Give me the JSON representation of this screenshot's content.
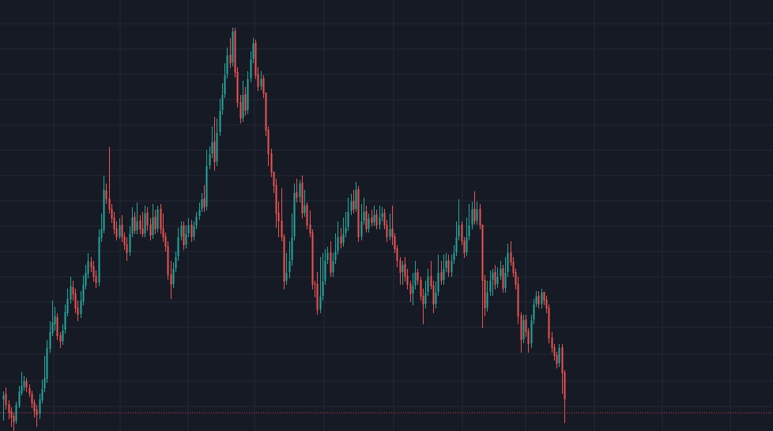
{
  "chart_data": {
    "type": "candlestick",
    "title": "",
    "xlabel": "",
    "ylabel": "",
    "grid": true,
    "ylim": [
      0,
      545
    ],
    "price_line": 522,
    "colors": {
      "background": "#161a25",
      "grid": "#242836",
      "up": "#26a69a",
      "down": "#ef5350",
      "price_line": "#ef5350"
    },
    "candles": [
      [
        505,
        500,
        532,
        495
      ],
      [
        498,
        512,
        518,
        490
      ],
      [
        511,
        522,
        530,
        506
      ],
      [
        520,
        528,
        540,
        515
      ],
      [
        526,
        534,
        545,
        522
      ],
      [
        532,
        512,
        536,
        508
      ],
      [
        513,
        495,
        516,
        488
      ],
      [
        497,
        488,
        500,
        470
      ],
      [
        489,
        482,
        494,
        475
      ],
      [
        482,
        490,
        496,
        478
      ],
      [
        491,
        498,
        502,
        486
      ],
      [
        498,
        510,
        516,
        494
      ],
      [
        509,
        520,
        528,
        505
      ],
      [
        518,
        525,
        540,
        512
      ],
      [
        523,
        505,
        530,
        498
      ],
      [
        506,
        492,
        510,
        480
      ],
      [
        491,
        478,
        496,
        450
      ],
      [
        479,
        440,
        484,
        430
      ],
      [
        441,
        420,
        446,
        406
      ],
      [
        421,
        408,
        425,
        380
      ],
      [
        410,
        400,
        418,
        388
      ],
      [
        401,
        425,
        430,
        396
      ],
      [
        424,
        432,
        440,
        420
      ],
      [
        431,
        418,
        436,
        410
      ],
      [
        417,
        395,
        422,
        385
      ],
      [
        396,
        378,
        400,
        365
      ],
      [
        379,
        362,
        384,
        350
      ],
      [
        363,
        372,
        380,
        355
      ],
      [
        371,
        390,
        396,
        365
      ],
      [
        389,
        398,
        406,
        380
      ],
      [
        397,
        380,
        402,
        368
      ],
      [
        381,
        360,
        386,
        348
      ],
      [
        361,
        345,
        366,
        335
      ],
      [
        346,
        330,
        352,
        320
      ],
      [
        331,
        338,
        344,
        325
      ],
      [
        337,
        350,
        356,
        330
      ],
      [
        349,
        358,
        364,
        342
      ],
      [
        357,
        300,
        362,
        290
      ],
      [
        301,
        290,
        306,
        270
      ],
      [
        291,
        240,
        295,
        222
      ],
      [
        241,
        252,
        258,
        232
      ],
      [
        251,
        265,
        270,
        186
      ],
      [
        264,
        276,
        282,
        258
      ],
      [
        275,
        290,
        296,
        268
      ],
      [
        289,
        300,
        304,
        280
      ],
      [
        299,
        285,
        302,
        276
      ],
      [
        284,
        300,
        306,
        272
      ],
      [
        299,
        310,
        316,
        294
      ],
      [
        309,
        320,
        330,
        300
      ],
      [
        319,
        296,
        324,
        286
      ],
      [
        295,
        275,
        300,
        262
      ],
      [
        274,
        292,
        296,
        268
      ],
      [
        291,
        280,
        296,
        256
      ],
      [
        279,
        290,
        296,
        272
      ],
      [
        289,
        296,
        300,
        268
      ],
      [
        295,
        270,
        300,
        260
      ],
      [
        269,
        285,
        292,
        262
      ],
      [
        284,
        298,
        304,
        276
      ],
      [
        297,
        275,
        302,
        258
      ],
      [
        274,
        290,
        296,
        265
      ],
      [
        289,
        265,
        294,
        260
      ],
      [
        264,
        290,
        296,
        258
      ],
      [
        289,
        300,
        306,
        270
      ],
      [
        299,
        312,
        318,
        294
      ],
      [
        311,
        348,
        354,
        305
      ],
      [
        347,
        360,
        378,
        330
      ],
      [
        359,
        340,
        364,
        332
      ],
      [
        339,
        325,
        344,
        318
      ],
      [
        324,
        300,
        330,
        288
      ],
      [
        299,
        286,
        304,
        280
      ],
      [
        285,
        310,
        316,
        280
      ],
      [
        309,
        296,
        314,
        285
      ],
      [
        295,
        285,
        300,
        276
      ],
      [
        284,
        300,
        306,
        278
      ],
      [
        299,
        286,
        304,
        280
      ],
      [
        285,
        274,
        290,
        268
      ],
      [
        273,
        265,
        278,
        256
      ],
      [
        264,
        252,
        268,
        244
      ],
      [
        251,
        262,
        268,
        234
      ],
      [
        261,
        210,
        266,
        190
      ],
      [
        209,
        195,
        214,
        185
      ],
      [
        194,
        180,
        200,
        160
      ],
      [
        179,
        205,
        216,
        148
      ],
      [
        204,
        168,
        210,
        150
      ],
      [
        167,
        140,
        172,
        125
      ],
      [
        139,
        120,
        145,
        105
      ],
      [
        119,
        95,
        124,
        80
      ],
      [
        94,
        70,
        99,
        60
      ],
      [
        69,
        80,
        86,
        48
      ],
      [
        79,
        40,
        84,
        35
      ],
      [
        39,
        92,
        98,
        35
      ],
      [
        91,
        130,
        136,
        85
      ],
      [
        129,
        150,
        156,
        120
      ],
      [
        149,
        120,
        154,
        102
      ],
      [
        119,
        140,
        146,
        110
      ],
      [
        139,
        100,
        144,
        90
      ],
      [
        99,
        75,
        104,
        65
      ],
      [
        74,
        55,
        80,
        48
      ],
      [
        54,
        95,
        100,
        50
      ],
      [
        94,
        110,
        115,
        85
      ],
      [
        109,
        100,
        114,
        90
      ],
      [
        99,
        118,
        124,
        95
      ],
      [
        117,
        165,
        172,
        152
      ],
      [
        164,
        195,
        210,
        160
      ],
      [
        194,
        218,
        224,
        188
      ],
      [
        217,
        235,
        244,
        228
      ],
      [
        234,
        270,
        288,
        226
      ],
      [
        269,
        280,
        300,
        255
      ],
      [
        279,
        300,
        305,
        238
      ],
      [
        299,
        356,
        366,
        296
      ],
      [
        355,
        345,
        360,
        320
      ],
      [
        344,
        330,
        352,
        305
      ],
      [
        329,
        300,
        336,
        270
      ],
      [
        299,
        244,
        304,
        232
      ],
      [
        243,
        250,
        256,
        226
      ],
      [
        249,
        232,
        256,
        228
      ],
      [
        231,
        270,
        276,
        222
      ],
      [
        269,
        260,
        274,
        240
      ],
      [
        259,
        285,
        290,
        256
      ],
      [
        284,
        295,
        300,
        266
      ],
      [
        294,
        360,
        366,
        290
      ],
      [
        359,
        360,
        376,
        355
      ],
      [
        359,
        392,
        398,
        344
      ],
      [
        391,
        375,
        396,
        325
      ],
      [
        374,
        356,
        380,
        320
      ],
      [
        355,
        330,
        360,
        315
      ],
      [
        329,
        320,
        334,
        312
      ],
      [
        319,
        345,
        350,
        305
      ],
      [
        344,
        330,
        350,
        320
      ],
      [
        329,
        318,
        334,
        295
      ],
      [
        317,
        300,
        322,
        280
      ],
      [
        299,
        308,
        314,
        288
      ],
      [
        307,
        296,
        312,
        275
      ],
      [
        295,
        288,
        300,
        268
      ],
      [
        287,
        268,
        292,
        250
      ],
      [
        267,
        255,
        272,
        245
      ],
      [
        254,
        265,
        270,
        240
      ],
      [
        264,
        240,
        268,
        230
      ],
      [
        239,
        300,
        306,
        235
      ],
      [
        299,
        280,
        304,
        258
      ],
      [
        279,
        268,
        284,
        250
      ],
      [
        267,
        290,
        294,
        260
      ],
      [
        289,
        276,
        294,
        270
      ],
      [
        275,
        282,
        286,
        265
      ],
      [
        281,
        272,
        286,
        260
      ],
      [
        271,
        285,
        290,
        265
      ],
      [
        284,
        275,
        290,
        260
      ],
      [
        274,
        270,
        280,
        262
      ],
      [
        269,
        285,
        290,
        264
      ],
      [
        284,
        300,
        306,
        278
      ],
      [
        299,
        290,
        304,
        270
      ],
      [
        289,
        300,
        310,
        260
      ],
      [
        299,
        315,
        320,
        295
      ],
      [
        314,
        330,
        338,
        310
      ],
      [
        329,
        345,
        360,
        325
      ],
      [
        344,
        335,
        360,
        330
      ],
      [
        334,
        350,
        356,
        325
      ],
      [
        349,
        360,
        366,
        340
      ],
      [
        359,
        372,
        382,
        355
      ],
      [
        371,
        362,
        386,
        345
      ],
      [
        361,
        345,
        366,
        330
      ],
      [
        344,
        355,
        360,
        340
      ],
      [
        354,
        375,
        380,
        350
      ],
      [
        374,
        385,
        410,
        365
      ],
      [
        384,
        370,
        390,
        355
      ],
      [
        369,
        350,
        374,
        340
      ],
      [
        349,
        362,
        366,
        330
      ],
      [
        361,
        385,
        396,
        355
      ],
      [
        384,
        370,
        390,
        356
      ],
      [
        369,
        345,
        374,
        322
      ],
      [
        344,
        355,
        360,
        330
      ],
      [
        354,
        340,
        360,
        322
      ],
      [
        339,
        330,
        344,
        320
      ],
      [
        329,
        345,
        350,
        322
      ],
      [
        344,
        330,
        350,
        322
      ],
      [
        329,
        320,
        334,
        310
      ],
      [
        319,
        300,
        324,
        280
      ],
      [
        299,
        285,
        304,
        252
      ],
      [
        284,
        305,
        310,
        280
      ],
      [
        304,
        320,
        326,
        300
      ],
      [
        319,
        300,
        324,
        275
      ],
      [
        299,
        285,
        304,
        258
      ],
      [
        284,
        265,
        290,
        255
      ],
      [
        264,
        280,
        284,
        242
      ],
      [
        279,
        265,
        284,
        255
      ],
      [
        264,
        285,
        290,
        258
      ],
      [
        284,
        355,
        415,
        340
      ],
      [
        354,
        390,
        400,
        348
      ],
      [
        389,
        370,
        394,
        355
      ],
      [
        369,
        355,
        374,
        342
      ],
      [
        354,
        345,
        374,
        340
      ],
      [
        344,
        360,
        366,
        335
      ],
      [
        359,
        350,
        364,
        338
      ],
      [
        349,
        340,
        354,
        330
      ],
      [
        339,
        365,
        370,
        335
      ],
      [
        364,
        345,
        370,
        325
      ],
      [
        344,
        320,
        350,
        308
      ],
      [
        319,
        332,
        336,
        305
      ],
      [
        331,
        345,
        350,
        325
      ],
      [
        344,
        360,
        366,
        340
      ],
      [
        359,
        400,
        410,
        350
      ],
      [
        399,
        430,
        446,
        395
      ],
      [
        429,
        405,
        434,
        398
      ],
      [
        404,
        420,
        426,
        398
      ],
      [
        419,
        435,
        446,
        415
      ],
      [
        434,
        405,
        440,
        398
      ],
      [
        404,
        385,
        410,
        378
      ],
      [
        384,
        375,
        388,
        368
      ],
      [
        374,
        385,
        390,
        368
      ],
      [
        384,
        370,
        390,
        365
      ],
      [
        369,
        380,
        386,
        372
      ],
      [
        379,
        390,
        396,
        374
      ],
      [
        389,
        428,
        434,
        385
      ],
      [
        427,
        440,
        446,
        420
      ],
      [
        439,
        450,
        456,
        435
      ],
      [
        449,
        460,
        466,
        445
      ],
      [
        459,
        440,
        464,
        435
      ],
      [
        439,
        472,
        498,
        435
      ],
      [
        471,
        505,
        535,
        468
      ]
    ]
  }
}
